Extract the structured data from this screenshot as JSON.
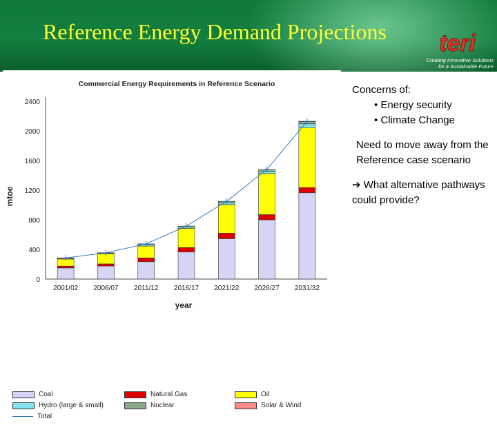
{
  "slide": {
    "title": "Reference Energy Demand Projections",
    "logo_mark": "teri",
    "logo_tagline_1": "Creating Innovative Solutions",
    "logo_tagline_2": "for a Sustainable Future"
  },
  "notes": {
    "concerns_heading": "Concerns of:",
    "bullet_1": "• Energy security",
    "bullet_2": "• Climate Change",
    "need": "Need to move away from the Reference case scenario",
    "arrow": "➔",
    "alternatives": "What alternative pathways could provide?"
  },
  "chart_data": {
    "type": "bar",
    "stacked": true,
    "title": "Commercial Energy Requirements in Reference Scenario",
    "xlabel": "year",
    "ylabel": "mtoe",
    "ylim": [
      0,
      2400
    ],
    "yticks": [
      "0",
      "400",
      "800",
      "1200",
      "1600",
      "2000",
      "2400"
    ],
    "categories": [
      "2001/02",
      "2006/07",
      "2011/12",
      "2016/17",
      "2021/22",
      "2026/27",
      "2031/32"
    ],
    "series": [
      {
        "name": "Coal",
        "color": "#d4d4f4",
        "values": [
          150,
          175,
          235,
          365,
          545,
          800,
          1165
        ]
      },
      {
        "name": "Natural Gas",
        "color": "#dd0000",
        "values": [
          25,
          30,
          50,
          60,
          75,
          70,
          70
        ]
      },
      {
        "name": "Oil",
        "color": "#ffff00",
        "values": [
          95,
          135,
          160,
          260,
          385,
          555,
          810
        ]
      },
      {
        "name": "Hydro (large & small)",
        "color": "#7fe0ee",
        "values": [
          10,
          10,
          20,
          20,
          25,
          30,
          50
        ]
      },
      {
        "name": "Nuclear",
        "color": "#88aa88",
        "values": [
          5,
          5,
          10,
          10,
          20,
          25,
          30
        ]
      },
      {
        "name": "Solar & Wind",
        "color": "#ff8a8a",
        "values": [
          0,
          0,
          0,
          0,
          0,
          0,
          5
        ]
      }
    ],
    "total": {
      "name": "Total",
      "color": "#3377bb",
      "values": [
        285,
        355,
        475,
        715,
        1050,
        1480,
        2130
      ]
    },
    "legend": [
      {
        "label": "Coal",
        "color": "#d4d4f4",
        "kind": "box"
      },
      {
        "label": "Natural Gas",
        "color": "#dd0000",
        "kind": "box"
      },
      {
        "label": "Oil",
        "color": "#ffff00",
        "kind": "box"
      },
      {
        "label": "Hydro (large & small)",
        "color": "#7fe0ee",
        "kind": "box"
      },
      {
        "label": "Nuclear",
        "color": "#88aa88",
        "kind": "box"
      },
      {
        "label": "Solar & Wind",
        "color": "#ff8a8a",
        "kind": "box"
      },
      {
        "label": "Total",
        "color": "#3377bb",
        "kind": "line"
      }
    ]
  }
}
